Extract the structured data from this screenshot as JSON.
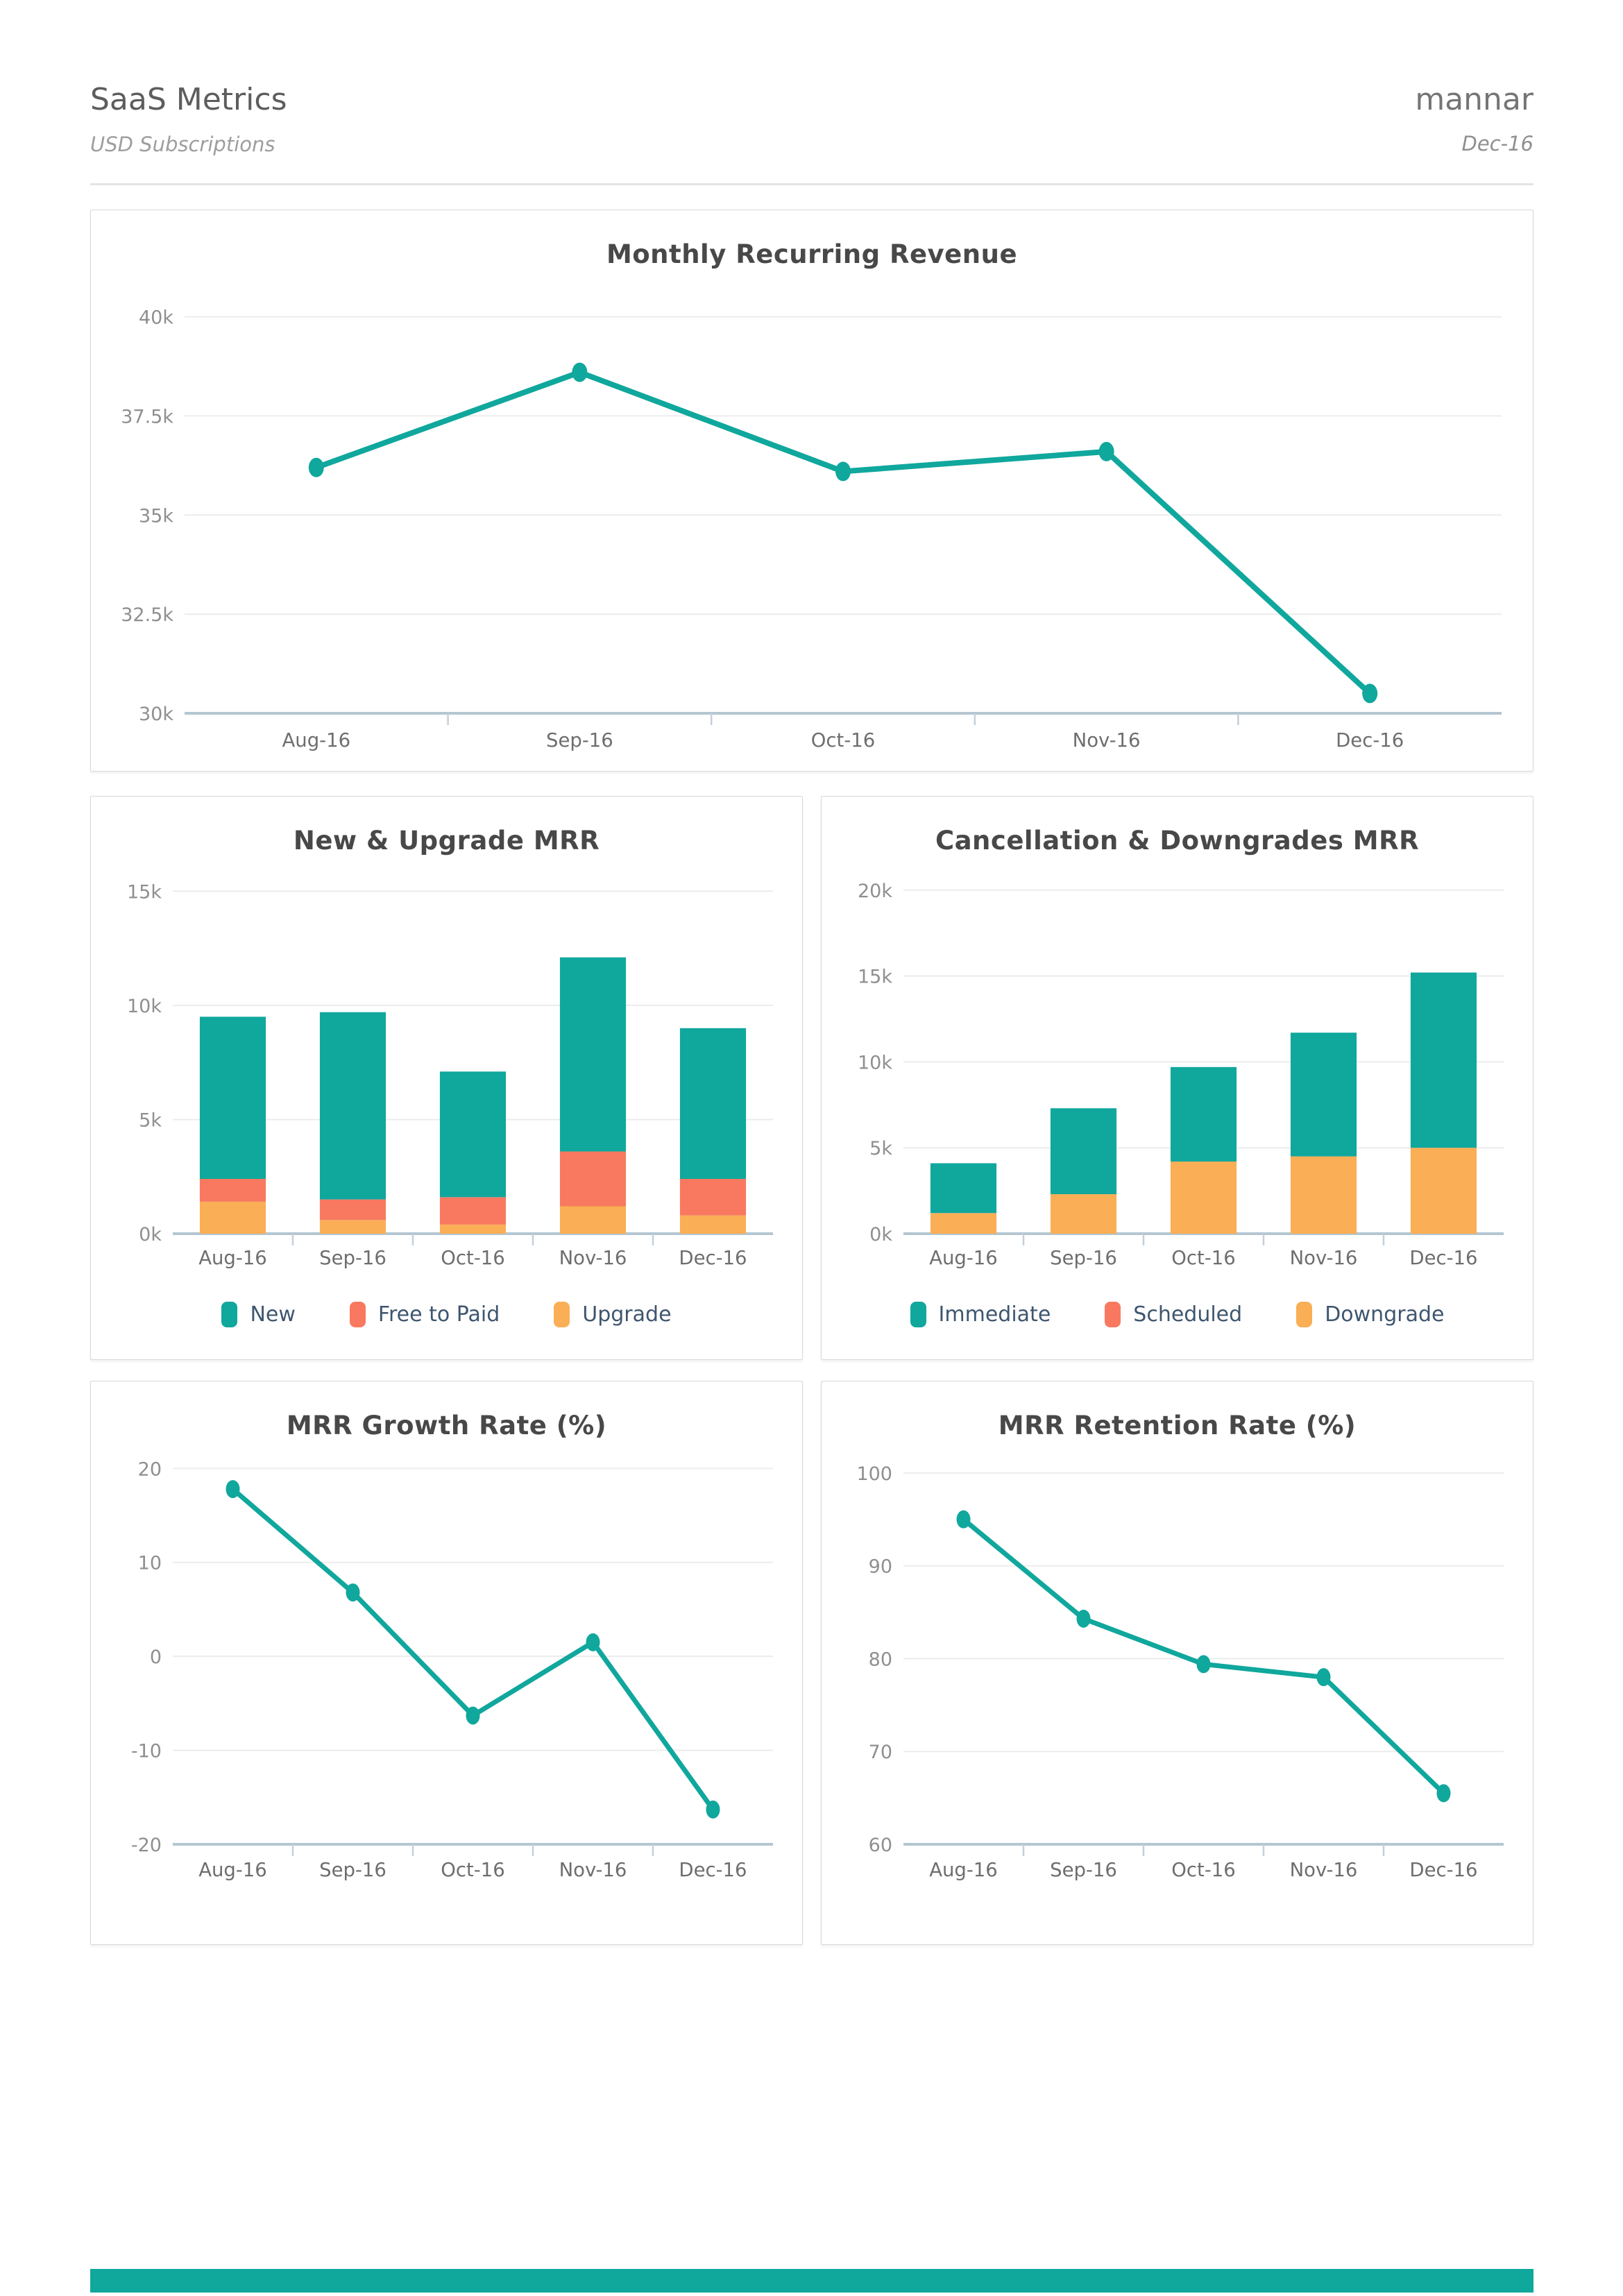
{
  "page": {
    "title": "SaaS Metrics",
    "subtitle": "USD Subscriptions",
    "brand": "mannar",
    "period": "Dec-16"
  },
  "colors": {
    "teal": "#10a79d",
    "coral": "#f87960",
    "amber": "#faae55",
    "grid": "#ececec",
    "axis_line": "#b4c6d2",
    "axis_tick": "#c3d0da",
    "ytick_label": "#8f8f8f",
    "xtick_label": "#6e6e6e",
    "footer_bar": "#10a79d"
  },
  "chart_data": [
    {
      "id": "mrr",
      "type": "line",
      "title": "Monthly Recurring Revenue",
      "categories": [
        "Aug-16",
        "Sep-16",
        "Oct-16",
        "Nov-16",
        "Dec-16"
      ],
      "series": [
        {
          "name": "MRR",
          "color_key": "teal",
          "values": [
            36.2,
            38.6,
            36.1,
            36.6,
            30.5
          ]
        }
      ],
      "unit": "k USD",
      "ylim": [
        30,
        40.5
      ],
      "yticks": [
        30,
        32.5,
        35,
        37.5,
        40
      ],
      "ytick_labels": [
        "30k",
        "32.5k",
        "35k",
        "37.5k",
        "40k"
      ],
      "grid": true,
      "legend": false
    },
    {
      "id": "new-upgrade",
      "type": "stacked-bar",
      "title": "New & Upgrade MRR",
      "categories": [
        "Aug-16",
        "Sep-16",
        "Oct-16",
        "Nov-16",
        "Dec-16"
      ],
      "series": [
        {
          "name": "New",
          "color_key": "teal",
          "values": [
            7.1,
            8.2,
            5.5,
            8.5,
            6.6
          ]
        },
        {
          "name": "Free to Paid",
          "color_key": "coral",
          "values": [
            1.0,
            0.9,
            1.2,
            2.4,
            1.6
          ]
        },
        {
          "name": "Upgrade",
          "color_key": "amber",
          "values": [
            1.4,
            0.6,
            0.4,
            1.2,
            0.8
          ]
        }
      ],
      "unit": "k USD",
      "ylim": [
        0,
        15.8
      ],
      "yticks": [
        0,
        5,
        10,
        15
      ],
      "ytick_labels": [
        "0k",
        "5k",
        "10k",
        "15k"
      ],
      "grid": true,
      "legend": true
    },
    {
      "id": "cancellation-downgrades",
      "type": "stacked-bar",
      "title": "Cancellation & Downgrades MRR",
      "categories": [
        "Aug-16",
        "Sep-16",
        "Oct-16",
        "Nov-16",
        "Dec-16"
      ],
      "series": [
        {
          "name": "Immediate",
          "color_key": "teal",
          "values": [
            2.9,
            5.0,
            5.5,
            7.2,
            10.2
          ]
        },
        {
          "name": "Scheduled",
          "color_key": "coral",
          "values": [
            0,
            0,
            0,
            0,
            0
          ]
        },
        {
          "name": "Downgrade",
          "color_key": "amber",
          "values": [
            1.2,
            2.3,
            4.2,
            4.5,
            5.0
          ]
        }
      ],
      "unit": "k USD",
      "ylim": [
        0,
        21
      ],
      "yticks": [
        0,
        5,
        10,
        15,
        20
      ],
      "ytick_labels": [
        "0k",
        "5k",
        "10k",
        "15k",
        "20k"
      ],
      "grid": true,
      "legend": true
    },
    {
      "id": "growth-rate",
      "type": "line",
      "title": "MRR Growth Rate (%)",
      "categories": [
        "Aug-16",
        "Sep-16",
        "Oct-16",
        "Nov-16",
        "Dec-16"
      ],
      "series": [
        {
          "name": "Growth Rate",
          "color_key": "teal",
          "values": [
            17.8,
            6.8,
            -6.3,
            1.5,
            -16.3
          ]
        }
      ],
      "unit": "%",
      "ylim": [
        -20,
        21.5
      ],
      "yticks": [
        -20,
        -10,
        0,
        10,
        20
      ],
      "ytick_labels": [
        "-20",
        "-10",
        "0",
        "10",
        "20"
      ],
      "grid": true,
      "legend": false
    },
    {
      "id": "retention-rate",
      "type": "line",
      "title": "MRR Retention Rate (%)",
      "categories": [
        "Aug-16",
        "Sep-16",
        "Oct-16",
        "Nov-16",
        "Dec-16"
      ],
      "series": [
        {
          "name": "Retention Rate",
          "color_key": "teal",
          "values": [
            95,
            84.3,
            79.4,
            78,
            65.5
          ]
        }
      ],
      "unit": "%",
      "ylim": [
        60,
        102
      ],
      "yticks": [
        60,
        70,
        80,
        90,
        100
      ],
      "ytick_labels": [
        "60",
        "70",
        "80",
        "90",
        "100"
      ],
      "grid": true,
      "legend": false
    }
  ]
}
